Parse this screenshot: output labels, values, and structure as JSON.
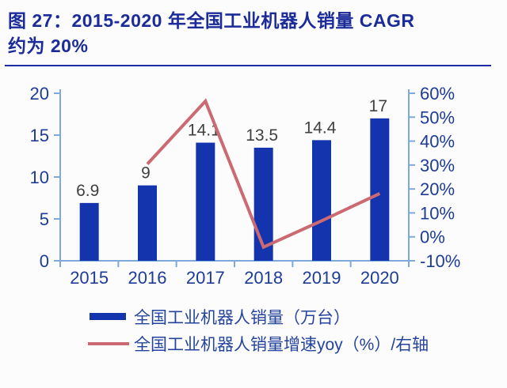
{
  "page": {
    "background": "#fcfcfc"
  },
  "title": {
    "line1": "图 27：2015-2020 年全国工业机器人销量 CAGR",
    "line2": "约为 20%",
    "color": "#1b2b9a",
    "underline_color": "#1c2ba3"
  },
  "chart_data": {
    "type": "bar",
    "subtype": "combo-bar-line-dual-axis",
    "categories": [
      "2015",
      "2016",
      "2017",
      "2018",
      "2019",
      "2020"
    ],
    "series": [
      {
        "name": "全国工业机器人销量（万台）",
        "type": "bar",
        "axis": "left",
        "values": [
          6.9,
          9,
          14.1,
          13.5,
          14.4,
          17
        ],
        "data_labels": [
          "6.9",
          "9",
          "14.1",
          "13.5",
          "14.4",
          "17"
        ],
        "color": "#1434ad"
      },
      {
        "name": "全国工业机器人销量增速yoy（%）/右轴",
        "type": "line",
        "axis": "right",
        "values": [
          null,
          30.4,
          56.7,
          -4.3,
          6.7,
          18.1
        ],
        "color": "#cb6a72"
      }
    ],
    "left_axis": {
      "min": 0,
      "max": 20,
      "tick_labels": [
        "0",
        "5",
        "10",
        "15",
        "20"
      ]
    },
    "right_axis": {
      "min": -10,
      "max": 60,
      "tick_labels": [
        "-10%",
        "0%",
        "10%",
        "20%",
        "30%",
        "40%",
        "50%",
        "60%"
      ]
    },
    "grid": false,
    "legend_position": "bottom",
    "axis_line_color": "#7fa9da",
    "axis_text_color": "#1e3c96",
    "data_label_color": "#404040"
  },
  "legend": {
    "items": [
      {
        "label": "全国工业机器人销量（万台）",
        "swatch": "bar-swatch",
        "color": "#1434ad"
      },
      {
        "label": "全国工业机器人销量增速yoy（%）/右轴",
        "swatch": "line-swatch",
        "color": "#cb6a72"
      }
    ],
    "text_color": "#24439e"
  }
}
